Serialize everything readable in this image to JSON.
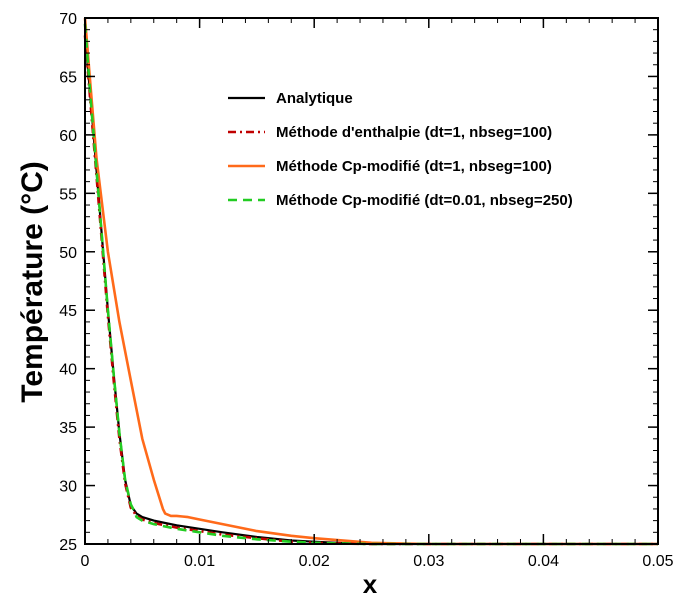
{
  "chart_data": {
    "type": "line",
    "xlabel": "x",
    "ylabel": "Température (°C)",
    "xlim": [
      0,
      0.05
    ],
    "ylim": [
      25,
      70
    ],
    "xticks": [
      0,
      0.01,
      0.02,
      0.03,
      0.04,
      0.05
    ],
    "xtick_labels": [
      "0",
      "0.01",
      "0.02",
      "0.03",
      "0.04",
      "0.05"
    ],
    "yticks": [
      25,
      30,
      35,
      40,
      45,
      50,
      55,
      60,
      65,
      70
    ],
    "ytick_labels": [
      "25",
      "30",
      "35",
      "40",
      "45",
      "50",
      "55",
      "60",
      "65",
      "70"
    ],
    "grid": false,
    "legend_position": "upper-right",
    "series": [
      {
        "name": "Analytique",
        "color": "#000000",
        "dash": "solid",
        "x": [
          0,
          0.0005,
          0.001,
          0.0015,
          0.002,
          0.0025,
          0.003,
          0.0035,
          0.004,
          0.0045,
          0.005,
          0.006,
          0.007,
          0.008,
          0.01,
          0.012,
          0.015,
          0.018,
          0.02,
          0.022,
          0.025,
          0.05
        ],
        "y": [
          68.5,
          63,
          57,
          51,
          45,
          39.5,
          34.5,
          30.5,
          28.3,
          27.6,
          27.3,
          27,
          26.8,
          26.6,
          26.3,
          26,
          25.6,
          25.3,
          25.2,
          25.1,
          25.0,
          25.0
        ]
      },
      {
        "name": "Méthode d'enthalpie (dt=1, nbseg=100)",
        "color": "#c00000",
        "dash": "dashdot",
        "x": [
          0,
          0.0005,
          0.001,
          0.0015,
          0.002,
          0.0025,
          0.003,
          0.0035,
          0.004,
          0.0045,
          0.005,
          0.006,
          0.007,
          0.008,
          0.01,
          0.012,
          0.015,
          0.018,
          0.02,
          0.022,
          0.025,
          0.05
        ],
        "y": [
          68.5,
          62.5,
          56.5,
          50.5,
          44.5,
          39,
          34,
          30.2,
          28.1,
          27.4,
          27.1,
          26.8,
          26.6,
          26.4,
          26.1,
          25.8,
          25.5,
          25.2,
          25.1,
          25.05,
          25.0,
          25.0
        ]
      },
      {
        "name": "Méthode Cp-modifié (dt=1, nbseg=100)",
        "color": "#ff6a1a",
        "dash": "solid",
        "x": [
          0,
          0.0005,
          0.001,
          0.002,
          0.003,
          0.004,
          0.005,
          0.006,
          0.0068,
          0.007,
          0.0075,
          0.008,
          0.0085,
          0.009,
          0.01,
          0.012,
          0.015,
          0.018,
          0.02,
          0.025,
          0.03,
          0.035,
          0.05
        ],
        "y": [
          70,
          64,
          58,
          50,
          44,
          39,
          34,
          30.5,
          28,
          27.6,
          27.4,
          27.4,
          27.35,
          27.3,
          27.1,
          26.7,
          26.1,
          25.7,
          25.5,
          25.1,
          25.0,
          25.0,
          25.0
        ]
      },
      {
        "name": "Méthode Cp-modifié (dt=0.01, nbseg=250)",
        "color": "#22cc22",
        "dash": "dashed",
        "x": [
          0,
          0.0005,
          0.001,
          0.0015,
          0.002,
          0.0025,
          0.003,
          0.0035,
          0.004,
          0.0042,
          0.0045,
          0.005,
          0.006,
          0.007,
          0.008,
          0.01,
          0.012,
          0.015,
          0.018,
          0.02,
          0.022,
          0.025,
          0.05
        ],
        "y": [
          69.5,
          63,
          57,
          51,
          45,
          39.5,
          34.5,
          30.5,
          28.4,
          28,
          27.3,
          27.0,
          26.7,
          26.5,
          26.3,
          26.0,
          25.7,
          25.4,
          25.2,
          25.1,
          25.05,
          25.0,
          25.0
        ]
      }
    ]
  }
}
